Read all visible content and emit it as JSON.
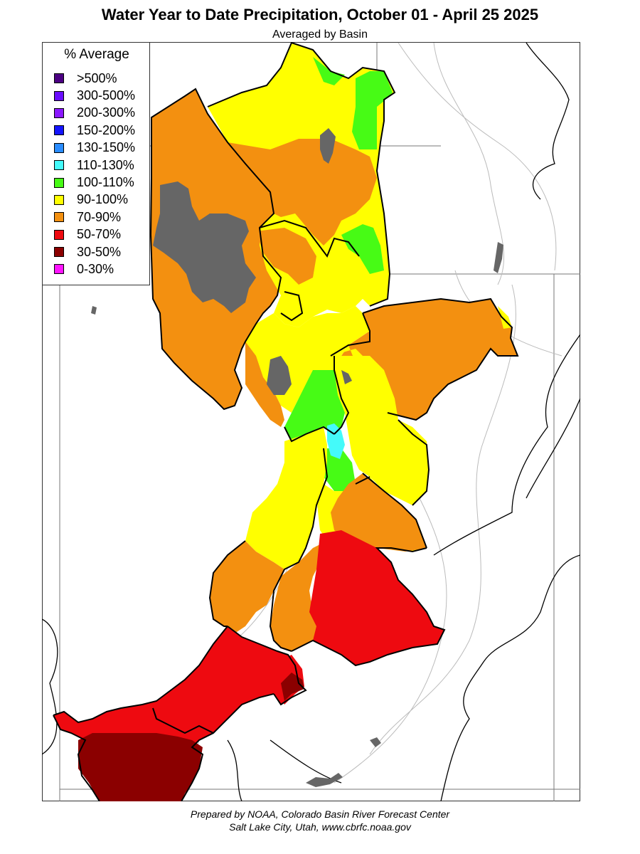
{
  "title": "Water Year to Date Precipitation, October 01  - April 25 2025",
  "subtitle": "Averaged by Basin",
  "legend": {
    "title": "% Average",
    "items": [
      {
        "label": ">500%",
        "color": "#4b0082"
      },
      {
        "label": "300-500%",
        "color": "#6a0dff"
      },
      {
        "label": "200-300%",
        "color": "#8a18ff"
      },
      {
        "label": "150-200%",
        "color": "#1414ff"
      },
      {
        "label": "130-150%",
        "color": "#2a8cff"
      },
      {
        "label": "110-130%",
        "color": "#44fafa"
      },
      {
        "label": "100-110%",
        "color": "#47fb15"
      },
      {
        "label": "90-100%",
        "color": "#ffff00"
      },
      {
        "label": "70-90%",
        "color": "#f39010"
      },
      {
        "label": "50-70%",
        "color": "#ee0a10"
      },
      {
        "label": "30-50%",
        "color": "#8b0000"
      },
      {
        "label": "0-30%",
        "color": "#ff14ff"
      }
    ]
  },
  "colors": {
    "lake": "#666666",
    "boundary": "#000000",
    "river": "#999999"
  },
  "credit": {
    "line1": "Prepared by NOAA, Colorado Basin River Forecast Center",
    "line2": "Salt Lake City, Utah, www.cbrfc.noaa.gov"
  }
}
